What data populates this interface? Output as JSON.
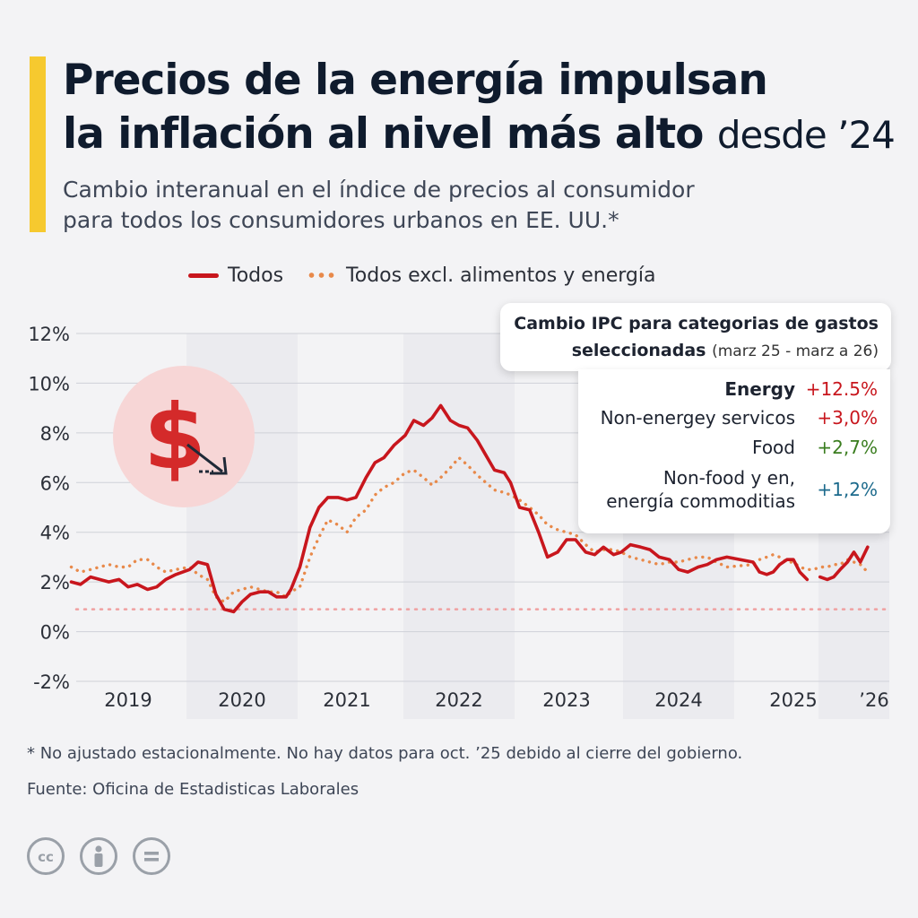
{
  "header": {
    "title_line1": "Precios de la energía impulsan",
    "title_line2_bold": "la inflación al nivel más alto",
    "title_line2_light": "desde ’24",
    "subtitle_line1": "Cambio interanual en el índice de precios al consumidor",
    "subtitle_line2": "para todos los consumidores urbanos en EE. UU.*"
  },
  "legend": {
    "all": "Todos",
    "core": "Todos excl. alimentos y energía"
  },
  "callout": {
    "title_line1": "Cambio IPC para categorias de gastos",
    "title_line2": "seleccionadas",
    "title_range": "(marz 25 - marz a 26)",
    "rows": [
      {
        "label": "Energy",
        "value": "+12.5%",
        "color": "#c8161d"
      },
      {
        "label": "Non-energey servicos",
        "value": "+3,0%",
        "color": "#c8161d"
      },
      {
        "label": "Food",
        "value": "+2,7%",
        "color": "#3a7d1f"
      },
      {
        "label_line1": "Non-food y en,",
        "label_line2": "energía commoditias",
        "value": "+1,2%",
        "color": "#1c6a8c"
      }
    ]
  },
  "footer": {
    "note": "* No ajustado estacionalmente. No hay datos para oct. ’25 debido al cierre del gobierno.",
    "source": "Fuente: Oficina de Estadisticas Laborales"
  },
  "icons": [
    "dollar-down-icon",
    "cc-icon",
    "by-person-icon",
    "nd-equals-icon"
  ],
  "colors": {
    "all_line": "#c8161d",
    "core_line": "#e8894a",
    "reference_line": "#f0a0a0",
    "accent": "#f6c92f",
    "shade": "#e6e6eb"
  },
  "chart_data": {
    "type": "line",
    "yticks": [
      "12%",
      "10%",
      "8%",
      "6%",
      "4%",
      "2%",
      "0%",
      "-2%"
    ],
    "ylim": [
      -2,
      12
    ],
    "year_labels": [
      "2019",
      "2020",
      "2021",
      "2022",
      "2023",
      "2024",
      "2025",
      "’26"
    ],
    "reference_line": 0.9,
    "series": [
      {
        "name": "Todos",
        "points": [
          [
            2019.0,
            2.0
          ],
          [
            2019.08,
            1.9
          ],
          [
            2019.17,
            2.2
          ],
          [
            2019.33,
            2.0
          ],
          [
            2019.42,
            2.1
          ],
          [
            2019.5,
            1.8
          ],
          [
            2019.58,
            1.9
          ],
          [
            2019.67,
            1.7
          ],
          [
            2019.75,
            1.8
          ],
          [
            2019.83,
            2.1
          ],
          [
            2019.92,
            2.3
          ],
          [
            2020.0,
            2.5
          ],
          [
            2020.08,
            2.8
          ],
          [
            2020.17,
            2.7
          ],
          [
            2020.25,
            1.5
          ],
          [
            2020.33,
            0.9
          ],
          [
            2020.42,
            0.8
          ],
          [
            2020.5,
            1.2
          ],
          [
            2020.58,
            1.5
          ],
          [
            2020.67,
            1.6
          ],
          [
            2020.75,
            1.6
          ],
          [
            2020.83,
            1.4
          ],
          [
            2020.92,
            1.4
          ],
          [
            2021.0,
            1.7
          ],
          [
            2021.08,
            2.6
          ],
          [
            2021.17,
            4.2
          ],
          [
            2021.25,
            5.0
          ],
          [
            2021.33,
            5.4
          ],
          [
            2021.42,
            5.4
          ],
          [
            2021.5,
            5.3
          ],
          [
            2021.58,
            5.4
          ],
          [
            2021.67,
            6.2
          ],
          [
            2021.75,
            6.8
          ],
          [
            2021.83,
            7.0
          ],
          [
            2021.92,
            7.5
          ],
          [
            2022.0,
            7.9
          ],
          [
            2022.08,
            8.5
          ],
          [
            2022.17,
            8.3
          ],
          [
            2022.25,
            8.6
          ],
          [
            2022.33,
            9.1
          ],
          [
            2022.42,
            8.5
          ],
          [
            2022.5,
            8.3
          ],
          [
            2022.58,
            8.2
          ],
          [
            2022.67,
            7.7
          ],
          [
            2022.75,
            7.1
          ],
          [
            2022.83,
            6.5
          ],
          [
            2022.92,
            6.4
          ],
          [
            2023.0,
            6.0
          ],
          [
            2023.08,
            5.0
          ],
          [
            2023.17,
            4.9
          ],
          [
            2023.25,
            4.0
          ],
          [
            2023.33,
            3.0
          ],
          [
            2023.42,
            3.2
          ],
          [
            2023.5,
            3.7
          ],
          [
            2023.58,
            3.7
          ],
          [
            2023.67,
            3.2
          ],
          [
            2023.75,
            3.1
          ],
          [
            2023.83,
            3.4
          ],
          [
            2023.92,
            3.1
          ],
          [
            2024.0,
            3.2
          ],
          [
            2024.08,
            3.5
          ],
          [
            2024.17,
            3.4
          ],
          [
            2024.25,
            3.3
          ],
          [
            2024.33,
            3.0
          ],
          [
            2024.42,
            2.9
          ],
          [
            2024.5,
            2.5
          ],
          [
            2024.58,
            2.4
          ],
          [
            2024.67,
            2.6
          ],
          [
            2024.75,
            2.7
          ],
          [
            2024.83,
            2.9
          ],
          [
            2024.92,
            3.0
          ],
          [
            2025.0,
            2.8
          ],
          [
            2025.08,
            2.4
          ],
          [
            2025.17,
            2.3
          ],
          [
            2025.25,
            2.4
          ],
          [
            2025.33,
            2.7
          ],
          [
            2025.42,
            2.9
          ],
          [
            2025.5,
            2.9
          ],
          [
            2025.58,
            2.4
          ],
          [
            2025.67,
            2.1
          ],
          [
            2025.75,
            2.0
          ],
          [
            2025.83,
            2.2
          ],
          [
            2025.92,
            2.1
          ],
          [
            2026.0,
            2.2
          ],
          [
            2026.08,
            2.5
          ],
          [
            2026.17,
            2.8
          ],
          [
            2026.25,
            3.2
          ],
          [
            2026.33,
            2.8
          ],
          [
            2026.42,
            3.4
          ]
        ]
      },
      {
        "name": "Todos excl. alimentos y energía",
        "points": [
          [
            2019.0,
            2.6
          ],
          [
            2019.08,
            2.4
          ],
          [
            2019.17,
            2.5
          ],
          [
            2019.33,
            2.7
          ],
          [
            2019.42,
            2.6
          ],
          [
            2019.5,
            2.6
          ],
          [
            2019.58,
            2.9
          ],
          [
            2019.67,
            2.9
          ],
          [
            2019.75,
            2.6
          ],
          [
            2019.83,
            2.4
          ],
          [
            2019.92,
            2.5
          ],
          [
            2020.0,
            2.6
          ],
          [
            2020.08,
            2.3
          ],
          [
            2020.17,
            2.1
          ],
          [
            2020.25,
            1.4
          ],
          [
            2020.33,
            1.2
          ],
          [
            2020.42,
            1.6
          ],
          [
            2020.5,
            1.7
          ],
          [
            2020.58,
            1.8
          ],
          [
            2020.67,
            1.7
          ],
          [
            2020.75,
            1.6
          ],
          [
            2020.83,
            1.6
          ],
          [
            2020.92,
            1.4
          ],
          [
            2021.0,
            1.6
          ],
          [
            2021.08,
            1.8
          ],
          [
            2021.17,
            3.0
          ],
          [
            2021.25,
            3.8
          ],
          [
            2021.33,
            4.5
          ],
          [
            2021.42,
            4.3
          ],
          [
            2021.5,
            4.0
          ],
          [
            2021.58,
            4.6
          ],
          [
            2021.67,
            4.9
          ],
          [
            2021.75,
            5.5
          ],
          [
            2021.83,
            5.8
          ],
          [
            2021.92,
            6.0
          ],
          [
            2022.0,
            6.4
          ],
          [
            2022.08,
            6.5
          ],
          [
            2022.17,
            6.2
          ],
          [
            2022.25,
            5.9
          ],
          [
            2022.33,
            6.2
          ],
          [
            2022.42,
            6.6
          ],
          [
            2022.5,
            7.0
          ],
          [
            2022.58,
            6.7
          ],
          [
            2022.67,
            6.3
          ],
          [
            2022.75,
            6.0
          ],
          [
            2022.83,
            5.7
          ],
          [
            2022.92,
            5.6
          ],
          [
            2023.0,
            5.5
          ],
          [
            2023.08,
            5.3
          ],
          [
            2023.17,
            5.0
          ],
          [
            2023.25,
            4.7
          ],
          [
            2023.33,
            4.3
          ],
          [
            2023.42,
            4.1
          ],
          [
            2023.5,
            4.0
          ],
          [
            2023.58,
            3.9
          ],
          [
            2023.67,
            3.5
          ],
          [
            2023.75,
            3.2
          ],
          [
            2023.83,
            3.3
          ],
          [
            2023.92,
            3.3
          ],
          [
            2024.0,
            3.2
          ],
          [
            2024.08,
            3.0
          ],
          [
            2024.17,
            2.9
          ],
          [
            2024.25,
            2.8
          ],
          [
            2024.33,
            2.7
          ],
          [
            2024.42,
            2.8
          ],
          [
            2024.5,
            2.8
          ],
          [
            2024.58,
            2.9
          ],
          [
            2024.67,
            3.0
          ],
          [
            2024.75,
            3.0
          ],
          [
            2024.83,
            2.8
          ],
          [
            2024.92,
            2.6
          ],
          [
            2025.0,
            2.7
          ],
          [
            2025.08,
            2.9
          ],
          [
            2025.17,
            3.0
          ],
          [
            2025.25,
            3.1
          ],
          [
            2025.33,
            3.0
          ],
          [
            2025.42,
            2.8
          ],
          [
            2025.5,
            2.8
          ],
          [
            2025.58,
            2.6
          ],
          [
            2025.67,
            2.5
          ],
          [
            2025.75,
            2.5
          ],
          [
            2025.83,
            2.6
          ],
          [
            2025.92,
            2.6
          ],
          [
            2026.0,
            2.7
          ],
          [
            2026.08,
            2.7
          ],
          [
            2026.17,
            2.9
          ],
          [
            2026.25,
            2.8
          ],
          [
            2026.33,
            2.7
          ],
          [
            2026.42,
            2.4
          ]
        ]
      }
    ]
  }
}
